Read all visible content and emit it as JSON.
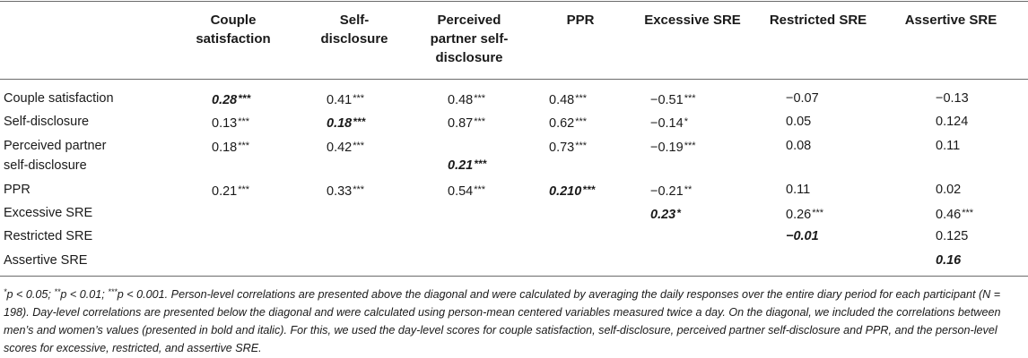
{
  "table": {
    "headers": [
      "Couple satisfaction",
      "Self-disclosure",
      "Perceived partner self-disclosure",
      "PPR",
      "Excessive SRE",
      "Restricted SRE",
      "Assertive SRE"
    ],
    "header_lines": [
      [
        "Couple",
        "satisfaction"
      ],
      [
        "Self-",
        "disclosure"
      ],
      [
        "Perceived",
        "partner self-",
        "disclosure"
      ],
      [
        "PPR"
      ],
      [
        "Excessive SRE"
      ],
      [
        "Restricted SRE"
      ],
      [
        "Assertive SRE"
      ]
    ],
    "rows": [
      {
        "label": [
          "Couple satisfaction"
        ],
        "cells": [
          {
            "v": "0.28",
            "s": "***",
            "diag": true
          },
          {
            "v": "0.41",
            "s": "***"
          },
          {
            "v": "0.48",
            "s": "***"
          },
          {
            "v": "0.48",
            "s": "***"
          },
          {
            "v": "−0.51",
            "s": "***"
          },
          {
            "v": "−0.07",
            "s": ""
          },
          {
            "v": "−0.13",
            "s": ""
          }
        ]
      },
      {
        "label": [
          "Self-disclosure"
        ],
        "cells": [
          {
            "v": "0.13",
            "s": "***"
          },
          {
            "v": "0.18",
            "s": "***",
            "diag": true
          },
          {
            "v": "0.87",
            "s": "***"
          },
          {
            "v": "0.62",
            "s": "***"
          },
          {
            "v": "−0.14",
            "s": "*"
          },
          {
            "v": "0.05",
            "s": ""
          },
          {
            "v": "0.124",
            "s": ""
          }
        ]
      },
      {
        "label": [
          "Perceived partner",
          "self-disclosure"
        ],
        "cells": [
          {
            "v": "0.18",
            "s": "***"
          },
          {
            "v": "0.42",
            "s": "***"
          },
          {
            "v": "0.21",
            "s": "***",
            "diag": true
          },
          {
            "v": "0.73",
            "s": "***"
          },
          {
            "v": "−0.19",
            "s": "***"
          },
          {
            "v": "0.08",
            "s": ""
          },
          {
            "v": "0.11",
            "s": ""
          }
        ]
      },
      {
        "label": [
          "PPR"
        ],
        "cells": [
          {
            "v": "0.21",
            "s": "***"
          },
          {
            "v": "0.33",
            "s": "***"
          },
          {
            "v": "0.54",
            "s": "***"
          },
          {
            "v": "0.210",
            "s": "***",
            "diag": true
          },
          {
            "v": "−0.21",
            "s": "**"
          },
          {
            "v": "0.11",
            "s": ""
          },
          {
            "v": "0.02",
            "s": ""
          }
        ]
      },
      {
        "label": [
          "Excessive SRE"
        ],
        "cells": [
          null,
          null,
          null,
          null,
          {
            "v": "0.23",
            "s": "*",
            "diag": true
          },
          {
            "v": "0.26",
            "s": "***"
          },
          {
            "v": "0.46",
            "s": "***"
          }
        ]
      },
      {
        "label": [
          "Restricted SRE"
        ],
        "cells": [
          null,
          null,
          null,
          null,
          null,
          {
            "v": "−0.01",
            "s": "",
            "diag": true
          },
          {
            "v": "0.125",
            "s": ""
          }
        ]
      },
      {
        "label": [
          "Assertive SRE"
        ],
        "cells": [
          null,
          null,
          null,
          null,
          null,
          null,
          {
            "v": "0.16",
            "s": "",
            "diag": true
          }
        ]
      }
    ]
  },
  "footnote": {
    "sig_1": "*",
    "p1": "p < 0.05; ",
    "sig_2": "**",
    "p2": "p < 0.01; ",
    "sig_3": "***",
    "p3": "p < 0.001. Person-level correlations are presented above the diagonal and were calculated by averaging the daily responses over the entire diary period for each participant (N = 198). Day-level correlations are presented below the diagonal and were calculated using person-mean centered variables measured twice a day. On the diagonal, we included the correlations between men’s and women’s values (presented in bold and italic). For this, we used the day-level scores for couple satisfaction, self-disclosure, perceived partner self-disclosure and PPR, and the person-level scores for excessive, restricted, and assertive SRE."
  }
}
